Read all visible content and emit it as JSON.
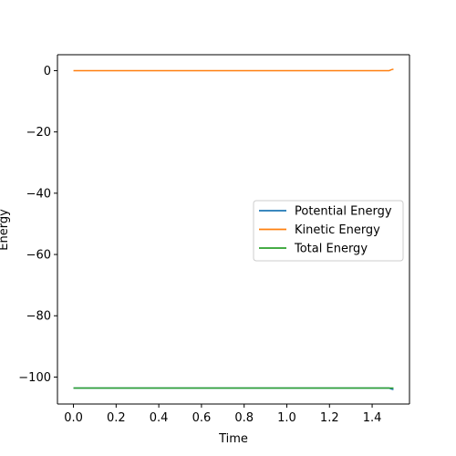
{
  "chart_data": {
    "type": "line",
    "title": "",
    "xlabel": "Time",
    "ylabel": "Energy",
    "xlim": [
      -0.075,
      1.575
    ],
    "ylim": [
      -108.8,
      5.2
    ],
    "xticks": [
      0.0,
      0.2,
      0.4,
      0.6,
      0.8,
      1.0,
      1.2,
      1.4
    ],
    "xtick_labels": [
      "0.0",
      "0.2",
      "0.4",
      "0.6",
      "0.8",
      "1.0",
      "1.2",
      "1.4"
    ],
    "yticks": [
      0,
      -20,
      -40,
      -60,
      -80,
      -100
    ],
    "ytick_labels": [
      "0",
      "−20",
      "−40",
      "−60",
      "−80",
      "−100"
    ],
    "grid": false,
    "legend_position": "center-right",
    "series": [
      {
        "name": "Potential Energy",
        "color": "#1f77b4",
        "x": [
          0.0,
          0.5,
          1.0,
          1.48,
          1.49,
          1.5
        ],
        "y": [
          -103.6,
          -103.6,
          -103.6,
          -103.6,
          -103.9,
          -104.1
        ]
      },
      {
        "name": "Kinetic Energy",
        "color": "#ff7f0e",
        "x": [
          0.0,
          0.5,
          1.0,
          1.48,
          1.49,
          1.5
        ],
        "y": [
          0.0,
          0.0,
          0.0,
          0.0,
          0.3,
          0.5
        ]
      },
      {
        "name": "Total Energy",
        "color": "#2ca02c",
        "x": [
          0.0,
          0.5,
          1.0,
          1.48,
          1.49,
          1.5
        ],
        "y": [
          -103.6,
          -103.6,
          -103.6,
          -103.6,
          -103.6,
          -103.6
        ]
      }
    ]
  }
}
